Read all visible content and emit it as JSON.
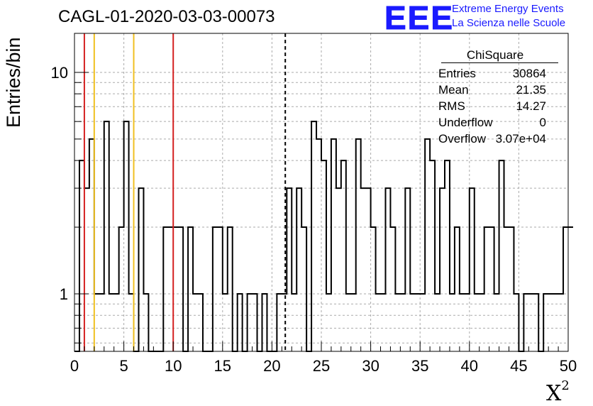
{
  "header": {
    "title": "CAGL-01-2020-03-03-00073",
    "logo_text": "EEE",
    "logo_line1": "Extreme Energy Events",
    "logo_line2": "La Scienza nelle Scuole"
  },
  "stats_box": {
    "name": "ChiSquare",
    "rows": [
      {
        "label": "Entries",
        "value": "30864"
      },
      {
        "label": "Mean",
        "value": "21.35"
      },
      {
        "label": "RMS",
        "value": "14.27"
      },
      {
        "label": "Underflow",
        "value": "0"
      },
      {
        "label": "Overflow",
        "value": "3.07e+04"
      }
    ]
  },
  "colors": {
    "histogram": "#000000",
    "red_lines": "#d42020",
    "yellow_lines": "#f0c020",
    "mean_line": "#000000",
    "grid": "#aaaaaa"
  },
  "chart_data": {
    "type": "histogram",
    "title": "CAGL-01-2020-03-03-00073",
    "xlabel": "X",
    "xlabel_superscript": "2",
    "ylabel": "Entries/bin",
    "xlim": [
      0,
      50
    ],
    "ylim": [
      0.55,
      15
    ],
    "yscale": "log",
    "bin_width": 0.5,
    "x_ticks": [
      "0",
      "5",
      "10",
      "15",
      "20",
      "25",
      "30",
      "35",
      "40",
      "45",
      "50"
    ],
    "y_ticks": [
      {
        "value": 1,
        "label": "1"
      },
      {
        "value": 10,
        "label": "10"
      }
    ],
    "grid": true,
    "values": [
      0,
      4,
      3,
      5,
      1,
      1,
      6,
      1,
      1,
      2,
      6,
      1,
      0,
      3,
      1,
      0,
      0,
      0,
      2,
      2,
      2,
      2,
      0,
      2,
      1,
      1,
      0,
      0,
      2,
      2,
      1,
      2,
      0,
      1,
      0,
      1,
      1,
      0,
      1,
      0,
      0,
      1,
      1,
      3,
      1,
      3,
      2,
      0,
      6,
      5,
      4,
      1,
      5,
      3,
      4,
      1,
      1,
      5,
      3,
      3,
      2,
      1,
      1,
      3,
      2,
      1,
      1,
      3,
      1,
      1,
      1,
      5,
      4,
      1,
      3,
      4,
      1,
      2,
      1,
      1,
      3,
      1,
      1,
      2,
      2,
      1,
      4,
      2,
      2,
      1,
      0,
      1,
      1,
      1,
      0,
      1,
      1,
      1,
      1,
      2,
      2
    ],
    "vertical_lines": [
      {
        "x": 1,
        "color": "red"
      },
      {
        "x": 2,
        "color": "yellow"
      },
      {
        "x": 6,
        "color": "yellow"
      },
      {
        "x": 10,
        "color": "red"
      },
      {
        "x": 21.35,
        "color": "mean",
        "style": "dashed"
      }
    ]
  }
}
